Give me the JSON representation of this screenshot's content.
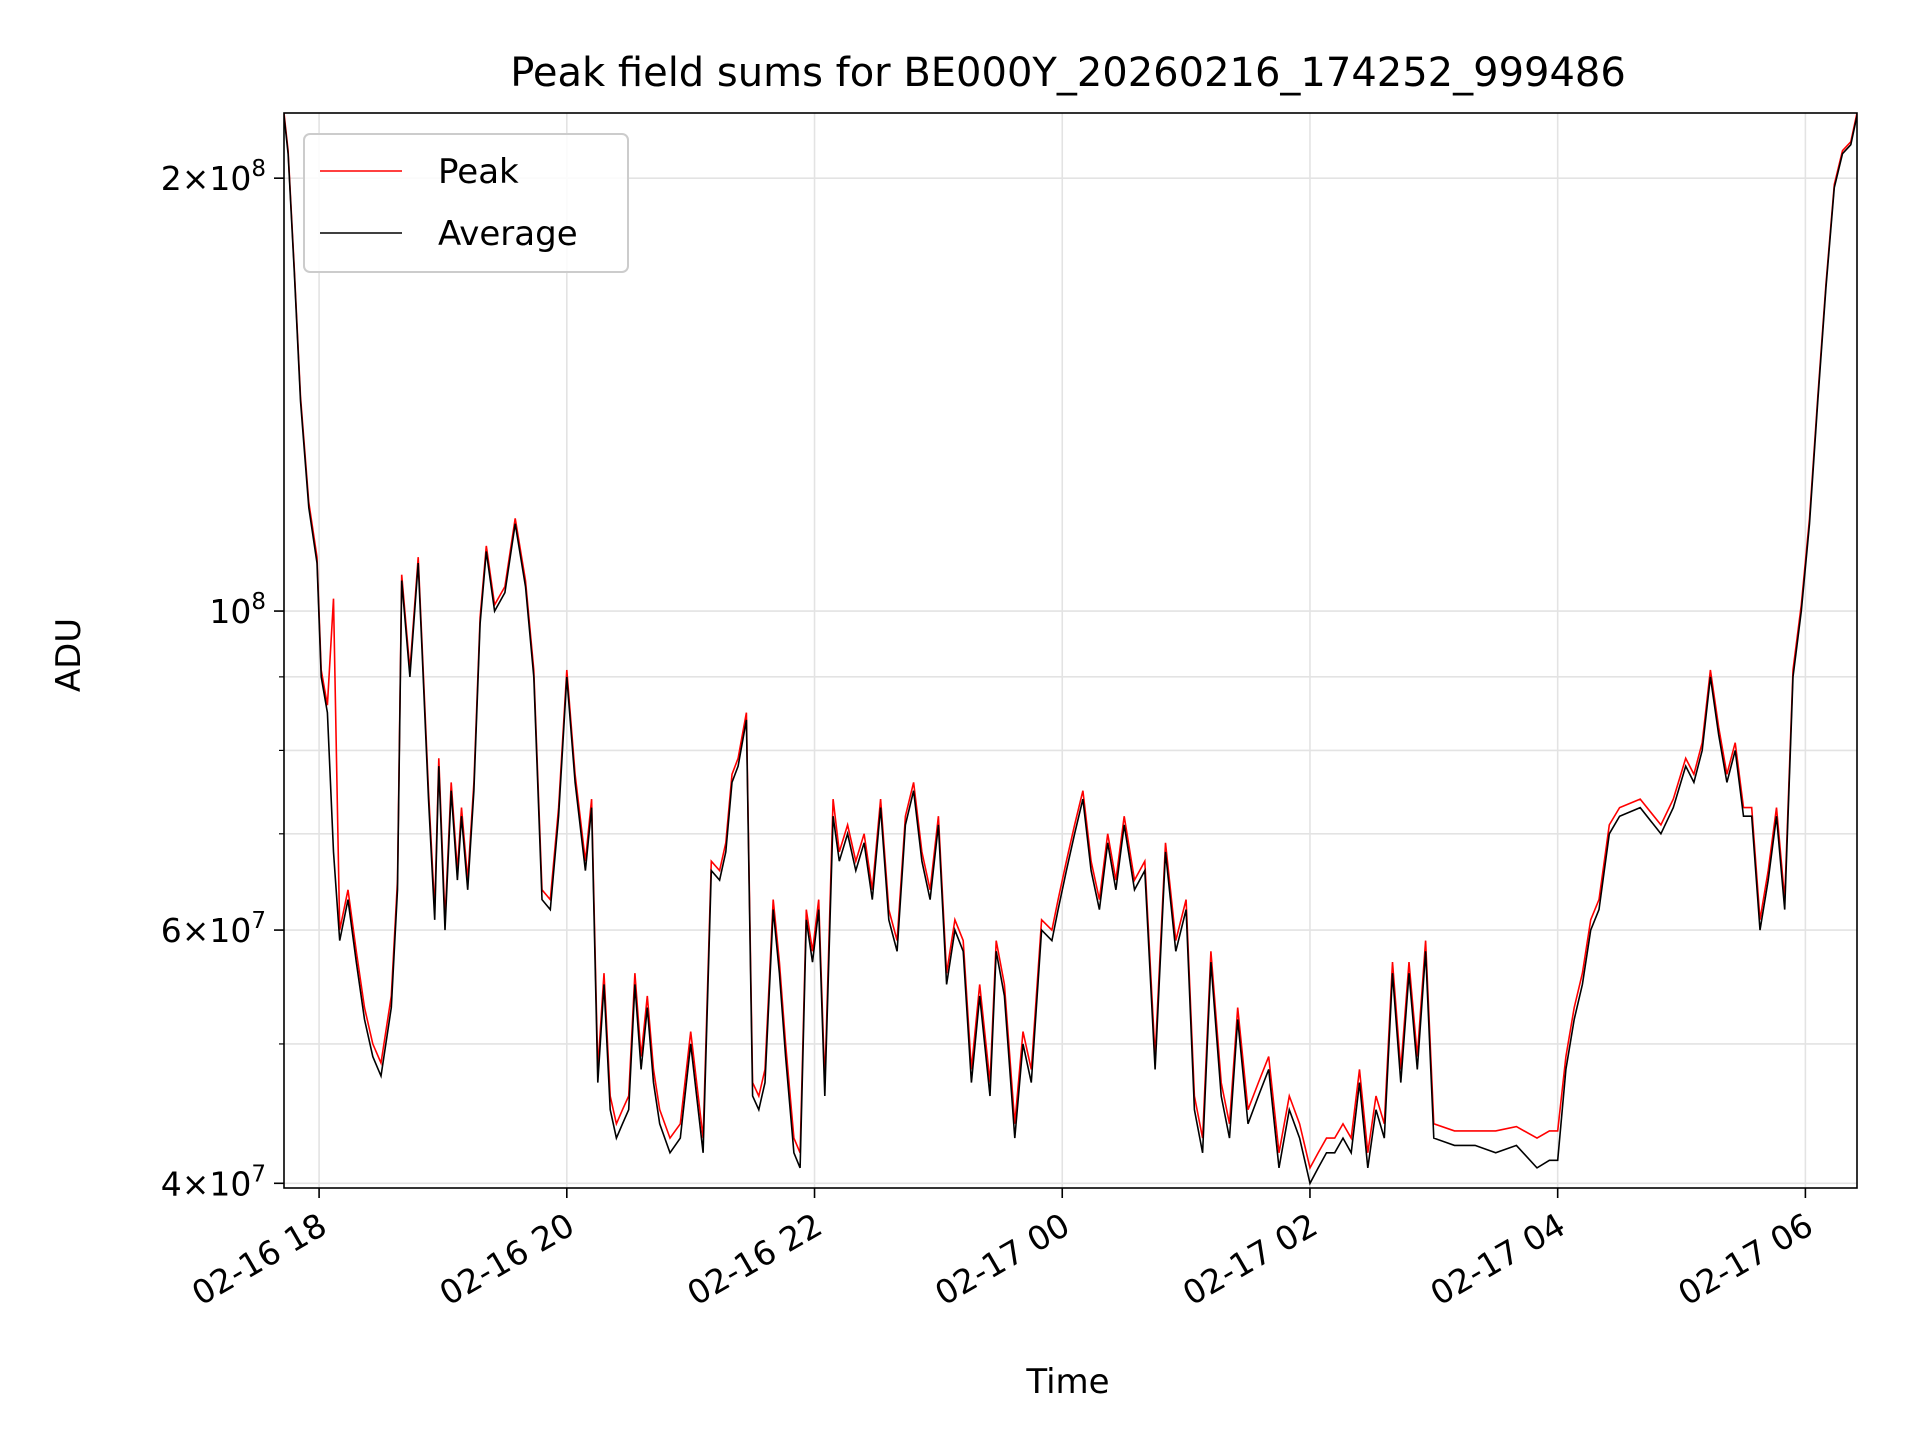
{
  "chart_data": {
    "type": "line",
    "title": "Peak field sums for BE000Y_20260216_174252_999486",
    "xlabel": "Time",
    "ylabel": "ADU",
    "yscale": "log",
    "grid": true,
    "legend_position": "top-left",
    "x_range": [
      "02-16 17:43",
      "02-17 06:25"
    ],
    "ylim": [
      39700000,
      222000000
    ],
    "x_ticks": [
      "02-16 18",
      "02-16 20",
      "02-16 22",
      "02-17 00",
      "02-17 02",
      "02-17 04",
      "02-17 06"
    ],
    "y_major_ticks": [
      {
        "value": 40000000,
        "base": "4",
        "exp": "7"
      },
      {
        "value": 60000000,
        "base": "6",
        "exp": "7"
      },
      {
        "value": 100000000,
        "base": "",
        "exp": "8"
      },
      {
        "value": 200000000,
        "base": "2",
        "exp": "8"
      }
    ],
    "y_minor_ticks": [
      50000000,
      70000000,
      80000000,
      90000000
    ],
    "series": [
      {
        "name": "Peak",
        "color": "#ff0000"
      },
      {
        "name": "Average",
        "color": "#000000"
      }
    ],
    "x": [
      "17:43",
      "17:45",
      "17:48",
      "17:51",
      "17:55",
      "17:59",
      "18:01",
      "18:04",
      "18:07",
      "18:10",
      "18:14",
      "18:18",
      "18:22",
      "18:26",
      "18:30",
      "18:35",
      "18:38",
      "18:40",
      "18:44",
      "18:48",
      "18:50",
      "18:53",
      "18:56",
      "18:58",
      "19:01",
      "19:04",
      "19:07",
      "19:09",
      "19:12",
      "19:15",
      "19:18",
      "19:21",
      "19:25",
      "19:30",
      "19:35",
      "19:40",
      "19:44",
      "19:48",
      "19:52",
      "19:56",
      "20:00",
      "20:04",
      "20:09",
      "20:12",
      "20:15",
      "20:18",
      "20:21",
      "20:24",
      "20:27",
      "20:30",
      "20:33",
      "20:36",
      "20:39",
      "20:42",
      "20:45",
      "20:50",
      "20:55",
      "21:00",
      "21:06",
      "21:10",
      "21:14",
      "21:17",
      "21:20",
      "21:23",
      "21:27",
      "21:30",
      "21:33",
      "21:36",
      "21:40",
      "21:43",
      "21:46",
      "21:50",
      "21:53",
      "21:56",
      "21:59",
      "22:02",
      "22:05",
      "22:09",
      "22:12",
      "22:16",
      "22:20",
      "22:24",
      "22:28",
      "22:32",
      "22:36",
      "22:40",
      "22:44",
      "22:48",
      "22:52",
      "22:56",
      "23:00",
      "23:04",
      "23:08",
      "23:12",
      "23:16",
      "23:20",
      "23:25",
      "23:28",
      "23:32",
      "23:37",
      "23:41",
      "23:45",
      "23:50",
      "23:55",
      "23:58",
      "00:02",
      "00:06",
      "00:10",
      "00:14",
      "00:18",
      "00:22",
      "00:26",
      "00:30",
      "00:35",
      "00:40",
      "00:45",
      "00:50",
      "00:55",
      "01:00",
      "01:04",
      "01:08",
      "01:12",
      "01:17",
      "01:21",
      "01:25",
      "01:30",
      "01:35",
      "01:40",
      "01:45",
      "01:50",
      "01:55",
      "02:00",
      "02:04",
      "02:08",
      "02:12",
      "02:16",
      "02:20",
      "02:24",
      "02:28",
      "02:32",
      "02:36",
      "02:40",
      "02:44",
      "02:48",
      "02:52",
      "02:56",
      "03:00",
      "03:10",
      "03:20",
      "03:30",
      "03:40",
      "03:50",
      "03:56",
      "04:00",
      "04:04",
      "04:08",
      "04:12",
      "04:16",
      "04:20",
      "04:25",
      "04:30",
      "04:40",
      "04:50",
      "04:56",
      "05:02",
      "05:06",
      "05:10",
      "05:14",
      "05:18",
      "05:22",
      "05:26",
      "05:30",
      "05:34",
      "05:38",
      "05:42",
      "05:46",
      "05:50",
      "05:54",
      "05:58",
      "06:02",
      "06:06",
      "06:10",
      "06:14",
      "06:18",
      "06:22",
      "06:25"
    ],
    "average": [
      221000000,
      208000000,
      172000000,
      140000000,
      118000000,
      108000000,
      90000000,
      85000000,
      68000000,
      59000000,
      63000000,
      57000000,
      52000000,
      49000000,
      47500000,
      53000000,
      64000000,
      105000000,
      90000000,
      108000000,
      93000000,
      74000000,
      61000000,
      78000000,
      60000000,
      75000000,
      65000000,
      72000000,
      64000000,
      75000000,
      98000000,
      110000000,
      100000000,
      103000000,
      115000000,
      104000000,
      90000000,
      63000000,
      62000000,
      72000000,
      90000000,
      76000000,
      66000000,
      73000000,
      47000000,
      55000000,
      45000000,
      43000000,
      44000000,
      45000000,
      55000000,
      48000000,
      53000000,
      47000000,
      44000000,
      42000000,
      43000000,
      50000000,
      42000000,
      66000000,
      65000000,
      68000000,
      76000000,
      78000000,
      84000000,
      46000000,
      45000000,
      47000000,
      62000000,
      56000000,
      49000000,
      42000000,
      41000000,
      61000000,
      57000000,
      62000000,
      46000000,
      72000000,
      67000000,
      70000000,
      66000000,
      69000000,
      63000000,
      73000000,
      61000000,
      58000000,
      71000000,
      75000000,
      67000000,
      63000000,
      71000000,
      55000000,
      60000000,
      58000000,
      47000000,
      54000000,
      46000000,
      58000000,
      54000000,
      43000000,
      50000000,
      47000000,
      60000000,
      59000000,
      62000000,
      66000000,
      70000000,
      74000000,
      66000000,
      62000000,
      69000000,
      64000000,
      71000000,
      64000000,
      66000000,
      48000000,
      68000000,
      58000000,
      62000000,
      45000000,
      42000000,
      57000000,
      46000000,
      43000000,
      52000000,
      44000000,
      46000000,
      48000000,
      41000000,
      45000000,
      43000000,
      40000000,
      41000000,
      42000000,
      42000000,
      43000000,
      42000000,
      47000000,
      41000000,
      45000000,
      43000000,
      56000000,
      47000000,
      56000000,
      48000000,
      58000000,
      43000000,
      42500000,
      42500000,
      42000000,
      42500000,
      41000000,
      41500000,
      41500000,
      48000000,
      52000000,
      55000000,
      60000000,
      62000000,
      70000000,
      72000000,
      73000000,
      70000000,
      73000000,
      78000000,
      76000000,
      80000000,
      90000000,
      82000000,
      76000000,
      80000000,
      72000000,
      72000000,
      60000000,
      65000000,
      72000000,
      62000000,
      90000000,
      100000000,
      115000000,
      140000000,
      168000000,
      197000000,
      208000000,
      211000000,
      221000000
    ],
    "peak": [
      222000000,
      209000000,
      173000000,
      141000000,
      119000000,
      109000000,
      91000000,
      86000000,
      102000000,
      60000000,
      64000000,
      58000000,
      53000000,
      50000000,
      48500000,
      54000000,
      65000000,
      106000000,
      91000000,
      109000000,
      94000000,
      75000000,
      62000000,
      79000000,
      61000000,
      76000000,
      66000000,
      73000000,
      65000000,
      76000000,
      99000000,
      111000000,
      101000000,
      104000000,
      116000000,
      105000000,
      91000000,
      64000000,
      63000000,
      73000000,
      91000000,
      77000000,
      67000000,
      74000000,
      48000000,
      56000000,
      46000000,
      44000000,
      45000000,
      46000000,
      56000000,
      49000000,
      54000000,
      48000000,
      45000000,
      43000000,
      44000000,
      51000000,
      43000000,
      67000000,
      66000000,
      69000000,
      77000000,
      79000000,
      85000000,
      47000000,
      46000000,
      48000000,
      63000000,
      57000000,
      50000000,
      43000000,
      42000000,
      62000000,
      58000000,
      63000000,
      47000000,
      74000000,
      68000000,
      71000000,
      67000000,
      70000000,
      64000000,
      74000000,
      62000000,
      59000000,
      72000000,
      76000000,
      68000000,
      64000000,
      72000000,
      56000000,
      61000000,
      59000000,
      48000000,
      55000000,
      47000000,
      59000000,
      55000000,
      44000000,
      51000000,
      48000000,
      61000000,
      60000000,
      63000000,
      67000000,
      71000000,
      75000000,
      67000000,
      63000000,
      70000000,
      65000000,
      72000000,
      65000000,
      67000000,
      49000000,
      69000000,
      59000000,
      63000000,
      46000000,
      43000000,
      58000000,
      47000000,
      44000000,
      53000000,
      45000000,
      47000000,
      49000000,
      42000000,
      46000000,
      44000000,
      41000000,
      42000000,
      43000000,
      43000000,
      44000000,
      43000000,
      48000000,
      42000000,
      46000000,
      44000000,
      57000000,
      48000000,
      57000000,
      49000000,
      59000000,
      44000000,
      43500000,
      43500000,
      43500000,
      43800000,
      43000000,
      43500000,
      43500000,
      49000000,
      53000000,
      56000000,
      61000000,
      63000000,
      71000000,
      73000000,
      74000000,
      71000000,
      74000000,
      79000000,
      77000000,
      81000000,
      91000000,
      83000000,
      77000000,
      81000000,
      73000000,
      73000000,
      61000000,
      66000000,
      73000000,
      63000000,
      91000000,
      101000000,
      116000000,
      141000000,
      169000000,
      198000000,
      209000000,
      212000000,
      222000000
    ]
  }
}
